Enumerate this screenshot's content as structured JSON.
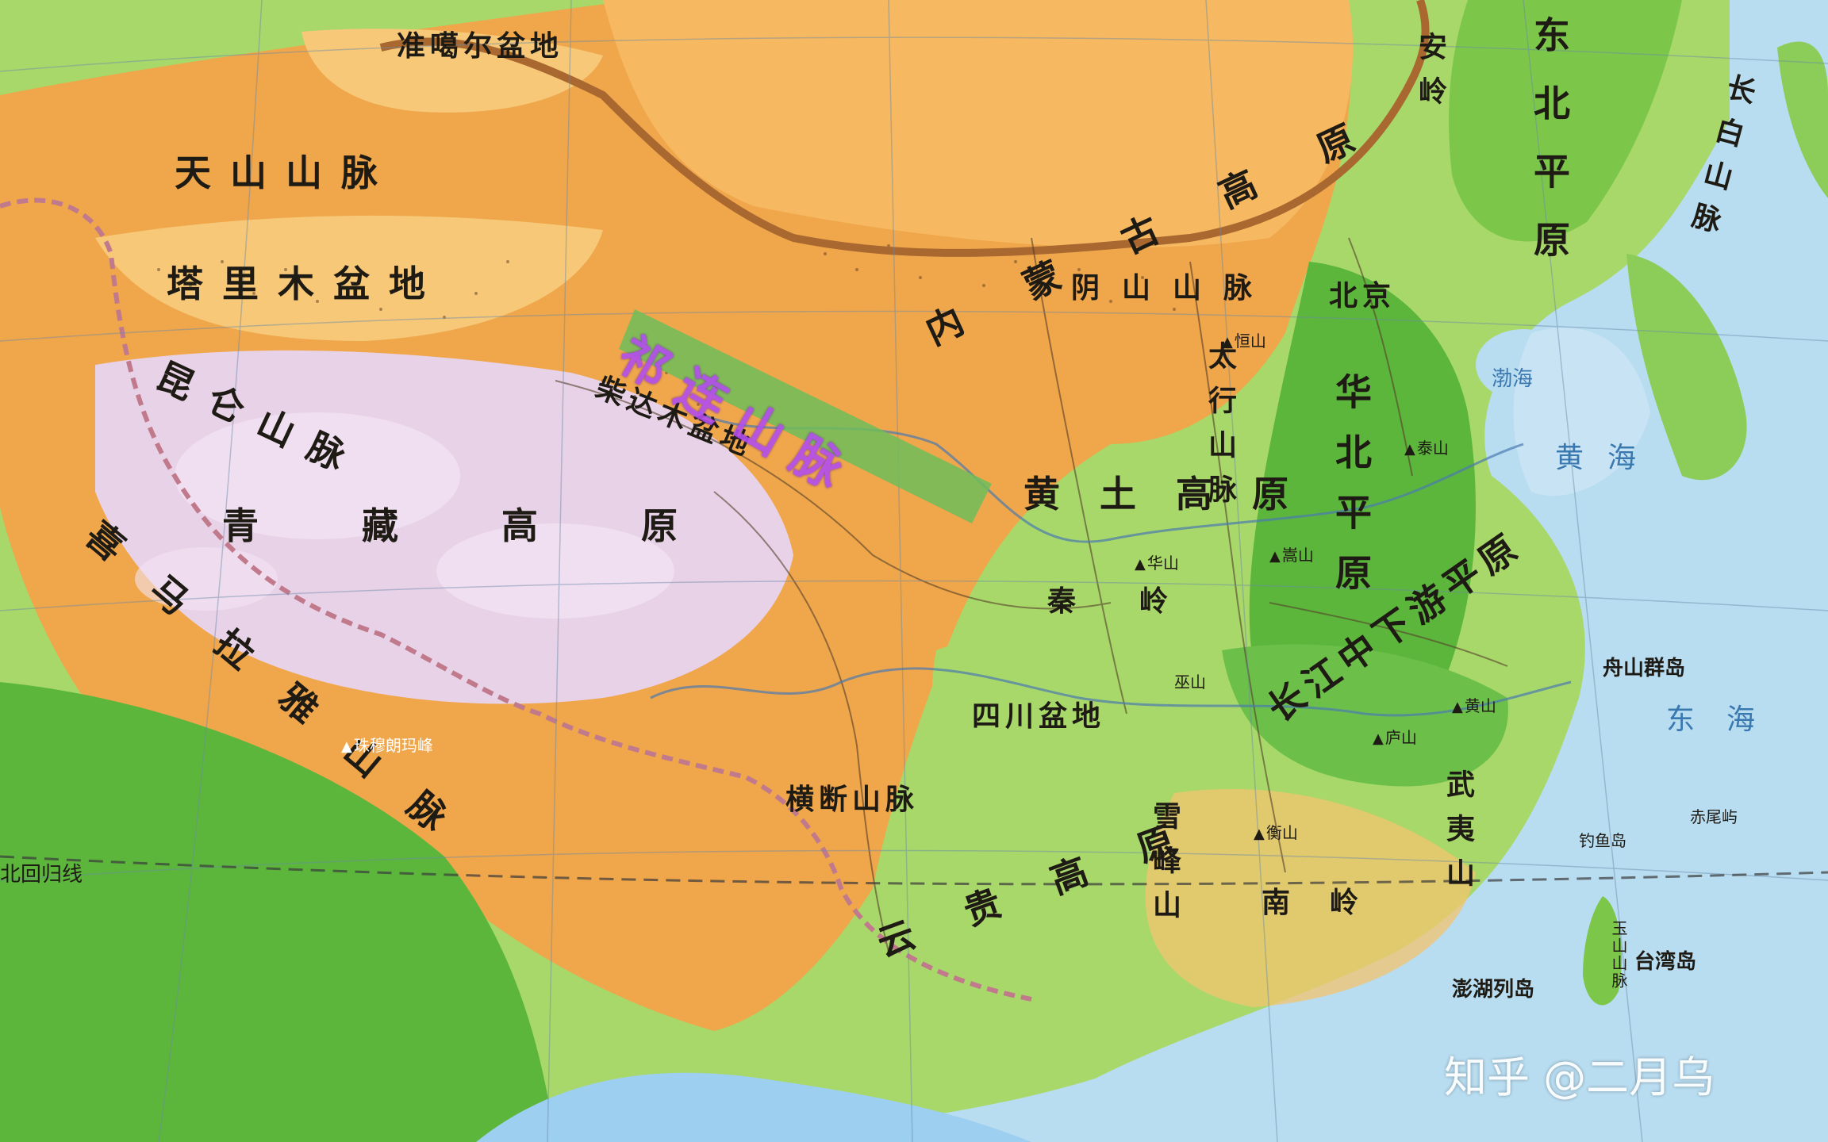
{
  "colors": {
    "ocean": "#b8dcf0",
    "plateau": "#f0a64a",
    "high_plateau": "#e8d2e8",
    "plain": "#7cc64a",
    "lowland": "#a8d86a",
    "highlight": "#b24df0",
    "border": "#a86830"
  },
  "watermark": "知乎 @二月乌",
  "highlight_label": "祁连山脉",
  "labels": {
    "junggar": "准噶尔盆地",
    "tianshan": "天山山脉",
    "tarim": "塔里木盆地",
    "kunlun": "昆仑山脉",
    "qaidam": "柴达木盆地",
    "qingzang": "青藏高原",
    "xima": "喜马拉雅山脉",
    "everest": "珠穆朗玛峰",
    "hengduan": "横断山脉",
    "sichuan": "四川盆地",
    "yungui": "云贵高原",
    "neimeng": "内蒙古高原",
    "yinshan": "阴山山脉",
    "huangtu": "黄土高原",
    "taihang": "太行山脉",
    "huabei": "华北平原",
    "beijing": "北京",
    "dongbei": "东北平原",
    "daxingan": "安岭",
    "changbai": "长白山脉",
    "qinling": "秦岭",
    "changjiang": "长江中下游平原",
    "xuefeng": "雪峰山",
    "wuyi": "武夷山",
    "nanling": "南岭",
    "zhoushan": "舟山群岛",
    "diaoyu": "钓鱼岛",
    "chiwei": "赤尾屿",
    "taiwan": "台湾岛",
    "penghu": "澎湖列岛",
    "yushan": "玉山山脉",
    "huanghai": "黄海",
    "donghai": "东海",
    "bohai": "渤海",
    "tropic": "北回归线",
    "taishan": "泰山",
    "huashan": "华山",
    "songshan": "嵩山",
    "hengshan": "衡山",
    "lushan": "庐山",
    "huangshan": "黄山",
    "hengshan_n": "恒山",
    "wushan": "巫山"
  }
}
